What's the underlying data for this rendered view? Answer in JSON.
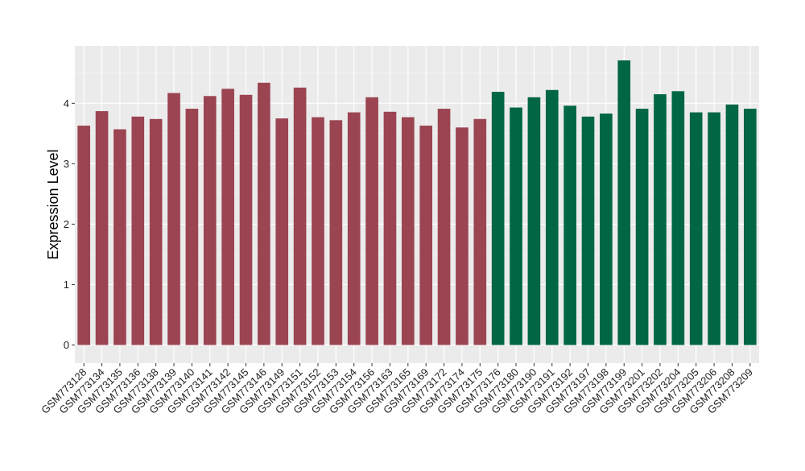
{
  "chart_data": {
    "type": "bar",
    "title": "",
    "xlabel": "",
    "ylabel": "Expression Level",
    "ylim": [
      -0.3,
      4.95
    ],
    "yticks": [
      0,
      1,
      2,
      3,
      4
    ],
    "grid": true,
    "legend": "none",
    "colors": {
      "panel_background": "#ebebeb",
      "grid_major": "#ffffff",
      "group_1": "#9b4452",
      "group_2": "#006644"
    },
    "categories": [
      "GSM773128",
      "GSM773134",
      "GSM773135",
      "GSM773136",
      "GSM773138",
      "GSM773139",
      "GSM773140",
      "GSM773141",
      "GSM773142",
      "GSM773145",
      "GSM773146",
      "GSM773149",
      "GSM773151",
      "GSM773152",
      "GSM773153",
      "GSM773154",
      "GSM773156",
      "GSM773163",
      "GSM773165",
      "GSM773169",
      "GSM773172",
      "GSM773174",
      "GSM773175",
      "GSM773176",
      "GSM773180",
      "GSM773190",
      "GSM773191",
      "GSM773192",
      "GSM773197",
      "GSM773198",
      "GSM773199",
      "GSM773201",
      "GSM773202",
      "GSM773204",
      "GSM773205",
      "GSM773206",
      "GSM773208",
      "GSM773209"
    ],
    "values": [
      3.63,
      3.87,
      3.57,
      3.78,
      3.74,
      4.17,
      3.91,
      4.12,
      4.24,
      4.14,
      4.34,
      3.75,
      4.26,
      3.77,
      3.72,
      3.85,
      4.1,
      3.86,
      3.77,
      3.63,
      3.91,
      3.6,
      3.74,
      4.19,
      3.93,
      4.1,
      4.22,
      3.96,
      3.78,
      3.83,
      4.71,
      3.91,
      4.15,
      4.2,
      3.85,
      3.85,
      3.98,
      3.91
    ],
    "groups": [
      1,
      1,
      1,
      1,
      1,
      1,
      1,
      1,
      1,
      1,
      1,
      1,
      1,
      1,
      1,
      1,
      1,
      1,
      1,
      1,
      1,
      1,
      1,
      2,
      2,
      2,
      2,
      2,
      2,
      2,
      2,
      2,
      2,
      2,
      2,
      2,
      2,
      2
    ]
  }
}
